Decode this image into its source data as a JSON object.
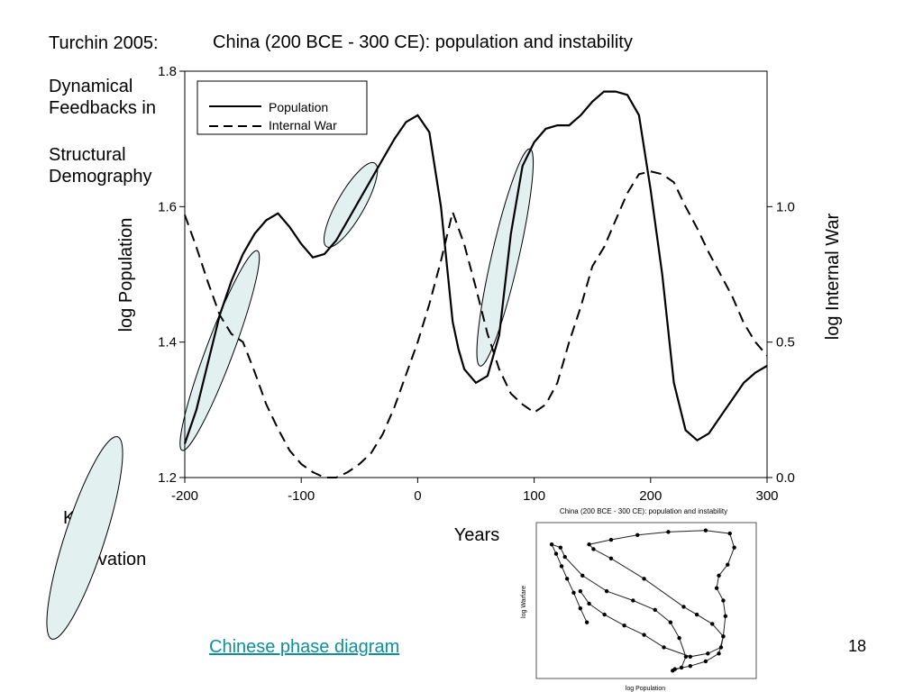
{
  "slide": {
    "reference": "Turchin 2005:",
    "subtitle_line1": "Dynamical Feedbacks in",
    "subtitle_line2": "Structural Demography",
    "key_label": "Key:",
    "innovation_label": "Innovation",
    "link_text": "Chinese phase diagram",
    "slide_number": "18",
    "link_color": "#0f8f9b",
    "ellipse_fill": "#e3f0f0"
  },
  "chart_data": [
    {
      "type": "line",
      "title": "China (200 BCE - 300 CE): population and instability",
      "xlabel": "Years",
      "ylabel": "log Population",
      "y2label": "log Internal War",
      "xlim": [
        -200,
        300
      ],
      "ylim": [
        1.2,
        1.8
      ],
      "y2lim": [
        0.0,
        1.5
      ],
      "x_ticks": [
        "-200",
        "-100",
        "0",
        "100",
        "200",
        "300"
      ],
      "y_ticks": [
        "1.2",
        "1.4",
        "1.6",
        "1.8"
      ],
      "y2_ticks": [
        "0.0",
        "0.5",
        "1.0"
      ],
      "legend_position": "top-left",
      "grid": false,
      "series": [
        {
          "name": "Population",
          "axis": "left",
          "style": "solid",
          "x": [
            -200,
            -190,
            -180,
            -170,
            -160,
            -150,
            -140,
            -130,
            -120,
            -110,
            -100,
            -90,
            -80,
            -70,
            -60,
            -50,
            -40,
            -30,
            -20,
            -10,
            0,
            10,
            20,
            30,
            35,
            40,
            50,
            60,
            70,
            80,
            90,
            100,
            110,
            120,
            130,
            140,
            150,
            160,
            170,
            180,
            190,
            200,
            210,
            220,
            230,
            240,
            250,
            260,
            270,
            280,
            290,
            300
          ],
          "values": [
            1.25,
            1.3,
            1.37,
            1.44,
            1.49,
            1.53,
            1.56,
            1.58,
            1.59,
            1.57,
            1.545,
            1.525,
            1.53,
            1.55,
            1.58,
            1.61,
            1.64,
            1.67,
            1.7,
            1.725,
            1.735,
            1.71,
            1.6,
            1.43,
            1.39,
            1.36,
            1.34,
            1.35,
            1.41,
            1.56,
            1.66,
            1.695,
            1.715,
            1.72,
            1.72,
            1.735,
            1.755,
            1.77,
            1.77,
            1.765,
            1.735,
            1.625,
            1.5,
            1.34,
            1.27,
            1.255,
            1.265,
            1.29,
            1.315,
            1.34,
            1.355,
            1.365
          ]
        },
        {
          "name": "Internal War",
          "axis": "right",
          "style": "dashed",
          "x": [
            -200,
            -190,
            -180,
            -170,
            -160,
            -150,
            -140,
            -130,
            -120,
            -110,
            -100,
            -90,
            -80,
            -70,
            -60,
            -50,
            -40,
            -30,
            -20,
            -10,
            0,
            10,
            20,
            30,
            40,
            50,
            60,
            70,
            80,
            90,
            100,
            110,
            120,
            130,
            140,
            150,
            160,
            170,
            180,
            190,
            200,
            210,
            220,
            230,
            240,
            250,
            260,
            270,
            280,
            290,
            300
          ],
          "values": [
            0.97,
            0.85,
            0.72,
            0.6,
            0.53,
            0.5,
            0.39,
            0.27,
            0.18,
            0.1,
            0.05,
            0.02,
            0.0,
            0.0,
            0.02,
            0.05,
            0.09,
            0.16,
            0.26,
            0.38,
            0.5,
            0.64,
            0.8,
            0.98,
            0.86,
            0.7,
            0.53,
            0.4,
            0.31,
            0.27,
            0.24,
            0.27,
            0.35,
            0.5,
            0.63,
            0.78,
            0.85,
            0.95,
            1.05,
            1.12,
            1.13,
            1.12,
            1.09,
            1.0,
            0.92,
            0.83,
            0.75,
            0.67,
            0.57,
            0.5,
            0.45
          ]
        }
      ],
      "innovation_ellipses": [
        {
          "x_range": [
            -200,
            -140
          ],
          "y_range": [
            1.25,
            1.525
          ]
        },
        {
          "x_range": [
            -75,
            -40
          ],
          "y_range": [
            1.55,
            1.655
          ]
        },
        {
          "x_range": [
            55,
            95
          ],
          "y_range": [
            1.375,
            1.675
          ]
        }
      ]
    },
    {
      "type": "scatter",
      "title": "China (200 BCE - 300 CE): population and instability",
      "xlabel": "log Population",
      "ylabel": "log Warfare",
      "xlim": [
        0,
        1
      ],
      "ylim": [
        0,
        1
      ],
      "connected": true,
      "grid": false,
      "points": [
        [
          0.23,
          0.36
        ],
        [
          0.2,
          0.45
        ],
        [
          0.17,
          0.55
        ],
        [
          0.14,
          0.64
        ],
        [
          0.115,
          0.72
        ],
        [
          0.09,
          0.8
        ],
        [
          0.07,
          0.86
        ],
        [
          0.11,
          0.84
        ],
        [
          0.13,
          0.78
        ],
        [
          0.21,
          0.66
        ],
        [
          0.32,
          0.56
        ],
        [
          0.44,
          0.5
        ],
        [
          0.54,
          0.44
        ],
        [
          0.61,
          0.36
        ],
        [
          0.65,
          0.26
        ],
        [
          0.68,
          0.14
        ],
        [
          0.66,
          0.07
        ],
        [
          0.62,
          0.05
        ],
        [
          0.63,
          0.06
        ],
        [
          0.7,
          0.08
        ],
        [
          0.77,
          0.11
        ],
        [
          0.83,
          0.16
        ],
        [
          0.85,
          0.27
        ],
        [
          0.86,
          0.4
        ],
        [
          0.85,
          0.5
        ],
        [
          0.82,
          0.58
        ],
        [
          0.83,
          0.66
        ],
        [
          0.87,
          0.73
        ],
        [
          0.9,
          0.84
        ],
        [
          0.88,
          0.93
        ],
        [
          0.77,
          0.95
        ],
        [
          0.6,
          0.94
        ],
        [
          0.46,
          0.92
        ],
        [
          0.34,
          0.89
        ],
        [
          0.24,
          0.86
        ],
        [
          0.26,
          0.83
        ],
        [
          0.34,
          0.77
        ],
        [
          0.49,
          0.64
        ],
        [
          0.67,
          0.46
        ],
        [
          0.73,
          0.41
        ],
        [
          0.8,
          0.35
        ],
        [
          0.85,
          0.27
        ],
        [
          0.84,
          0.2
        ],
        [
          0.78,
          0.16
        ],
        [
          0.7,
          0.14
        ],
        [
          0.58,
          0.2
        ],
        [
          0.49,
          0.28
        ],
        [
          0.4,
          0.34
        ],
        [
          0.31,
          0.41
        ],
        [
          0.24,
          0.48
        ],
        [
          0.2,
          0.56
        ]
      ]
    }
  ]
}
